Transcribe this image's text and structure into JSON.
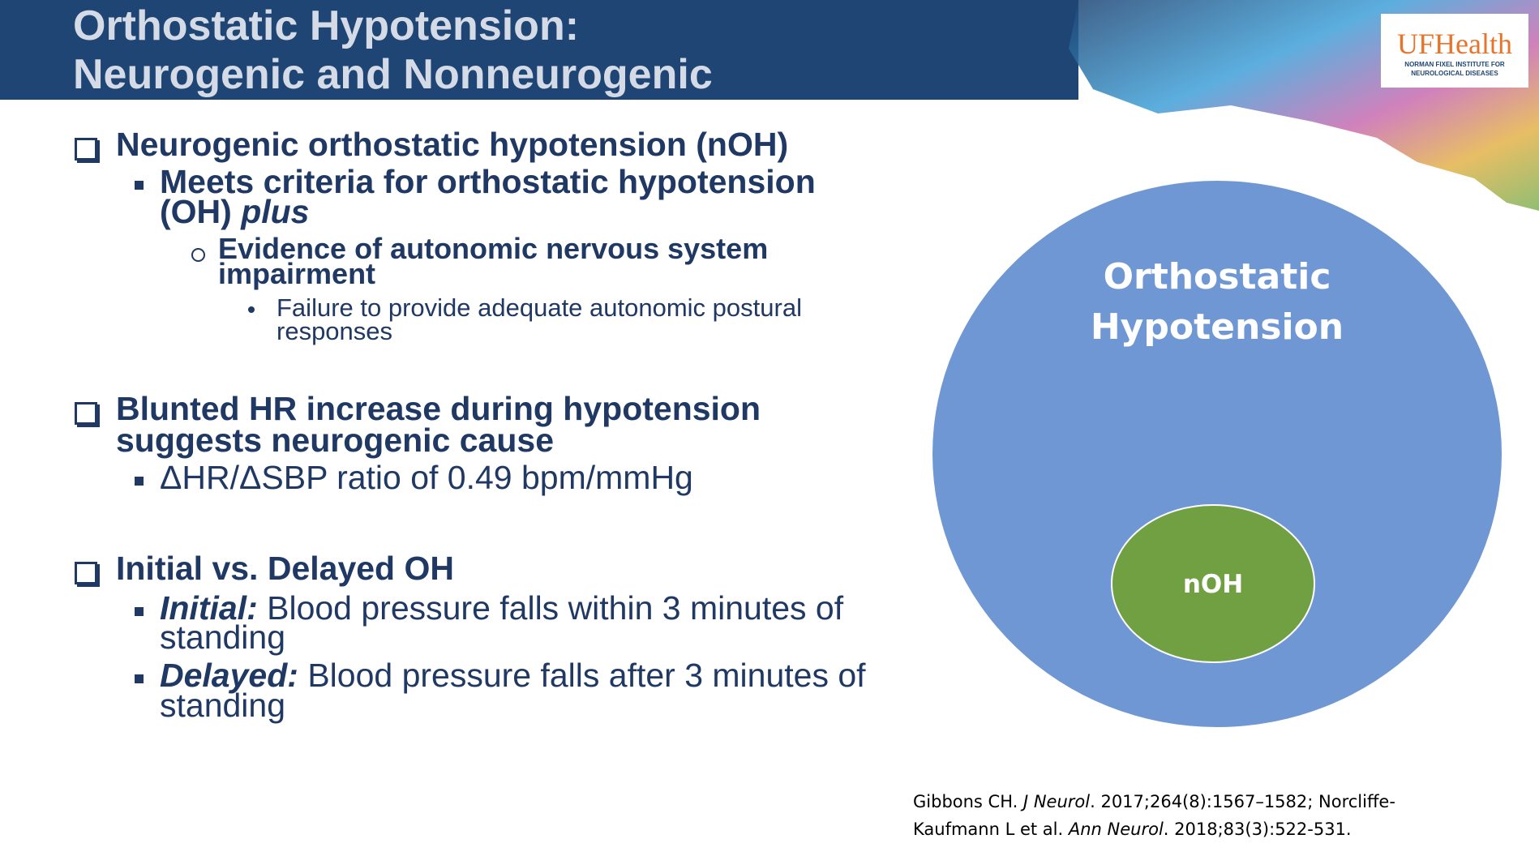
{
  "header": {
    "title": [
      "Orthostatic Hypotension:",
      "Neurogenic and Nonneurogenic"
    ]
  },
  "logo": {
    "brand": "UFHealth",
    "institute": [
      "NORMAN FIXEL INSTITUTE FOR",
      "NEUROLOGICAL DISEASES"
    ]
  },
  "bullets": [
    {
      "lines": [
        "Neurogenic orthostatic hypotension (nOH)"
      ],
      "sub": [
        {
          "lines": [
            "Meets criteria for orthostatic hypotension",
            "(OH) "
          ],
          "emphasis": "plus",
          "sub": [
            {
              "lines": [
                "Evidence of autonomic nervous system",
                "impairment"
              ],
              "sub": [
                {
                  "lines": [
                    "Failure to provide adequate autonomic postural",
                    "responses"
                  ]
                }
              ]
            }
          ]
        }
      ]
    },
    {
      "lines": [
        "Blunted HR increase during hypotension",
        "suggests neurogenic cause"
      ],
      "sub": [
        {
          "lines": [
            "ΔHR/ΔSBP ratio of 0.49 bpm/mmHg"
          ]
        }
      ]
    },
    {
      "lines": [
        "Initial vs. Delayed OH"
      ],
      "sub": [
        {
          "label": "Initial:",
          "lines": [
            " Blood pressure falls within 3 minutes of",
            "standing"
          ]
        },
        {
          "label": "Delayed:",
          "lines": [
            " Blood pressure falls after 3 minutes of",
            "standing"
          ]
        }
      ]
    }
  ],
  "diagram": {
    "outer": [
      "Orthostatic",
      "Hypotension"
    ],
    "inner": "nOH"
  },
  "citation": {
    "line1": {
      "a": "Gibbons CH. ",
      "j": "J Neurol",
      "b": ". 2017;264(8):1567–1582; Norcliffe-"
    },
    "line2": {
      "a": "Kaufmann L et al. ",
      "j": "Ann Neurol",
      "b": ". 2018;83(3):522-531."
    }
  }
}
